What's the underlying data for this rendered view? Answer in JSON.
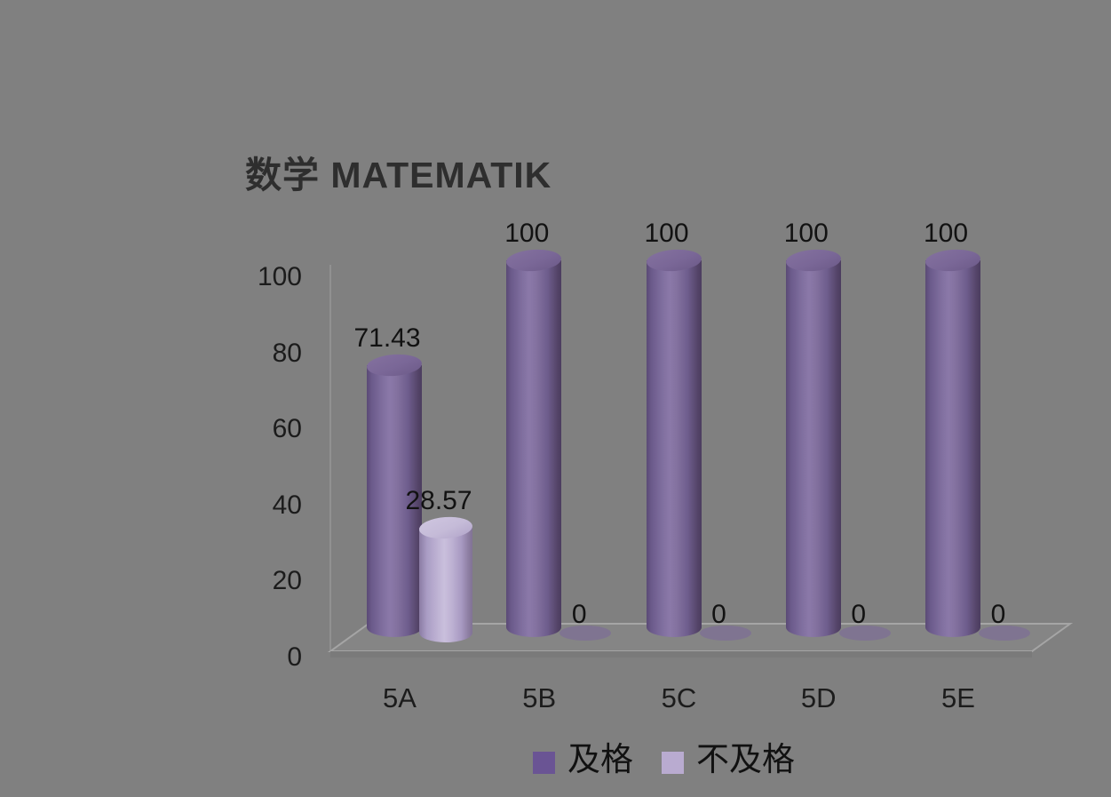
{
  "chart_data": {
    "type": "bar",
    "style": "3d-cylinder",
    "title": "数学 MATEMATIK",
    "background_color": "#808080",
    "categories": [
      "5A",
      "5B",
      "5C",
      "5D",
      "5E"
    ],
    "series": [
      {
        "name": "及格",
        "key": "pass",
        "color": "#6a5494",
        "values": [
          71.43,
          100,
          100,
          100,
          100
        ],
        "data_labels": [
          "71.43",
          "100",
          "100",
          "100",
          "100"
        ]
      },
      {
        "name": "不及格",
        "key": "fail",
        "color": "#b9abd0",
        "values": [
          28.57,
          0,
          0,
          0,
          0
        ],
        "data_labels": [
          "28.57",
          "0",
          "0",
          "0",
          "0"
        ]
      }
    ],
    "y_axis": {
      "tick_labels": [
        "0",
        "20",
        "40",
        "60",
        "80",
        "100"
      ],
      "tick_values": [
        0,
        20,
        40,
        60,
        80,
        100
      ],
      "min": 0,
      "max": 100
    },
    "legend_position": "bottom",
    "grid": "none"
  }
}
